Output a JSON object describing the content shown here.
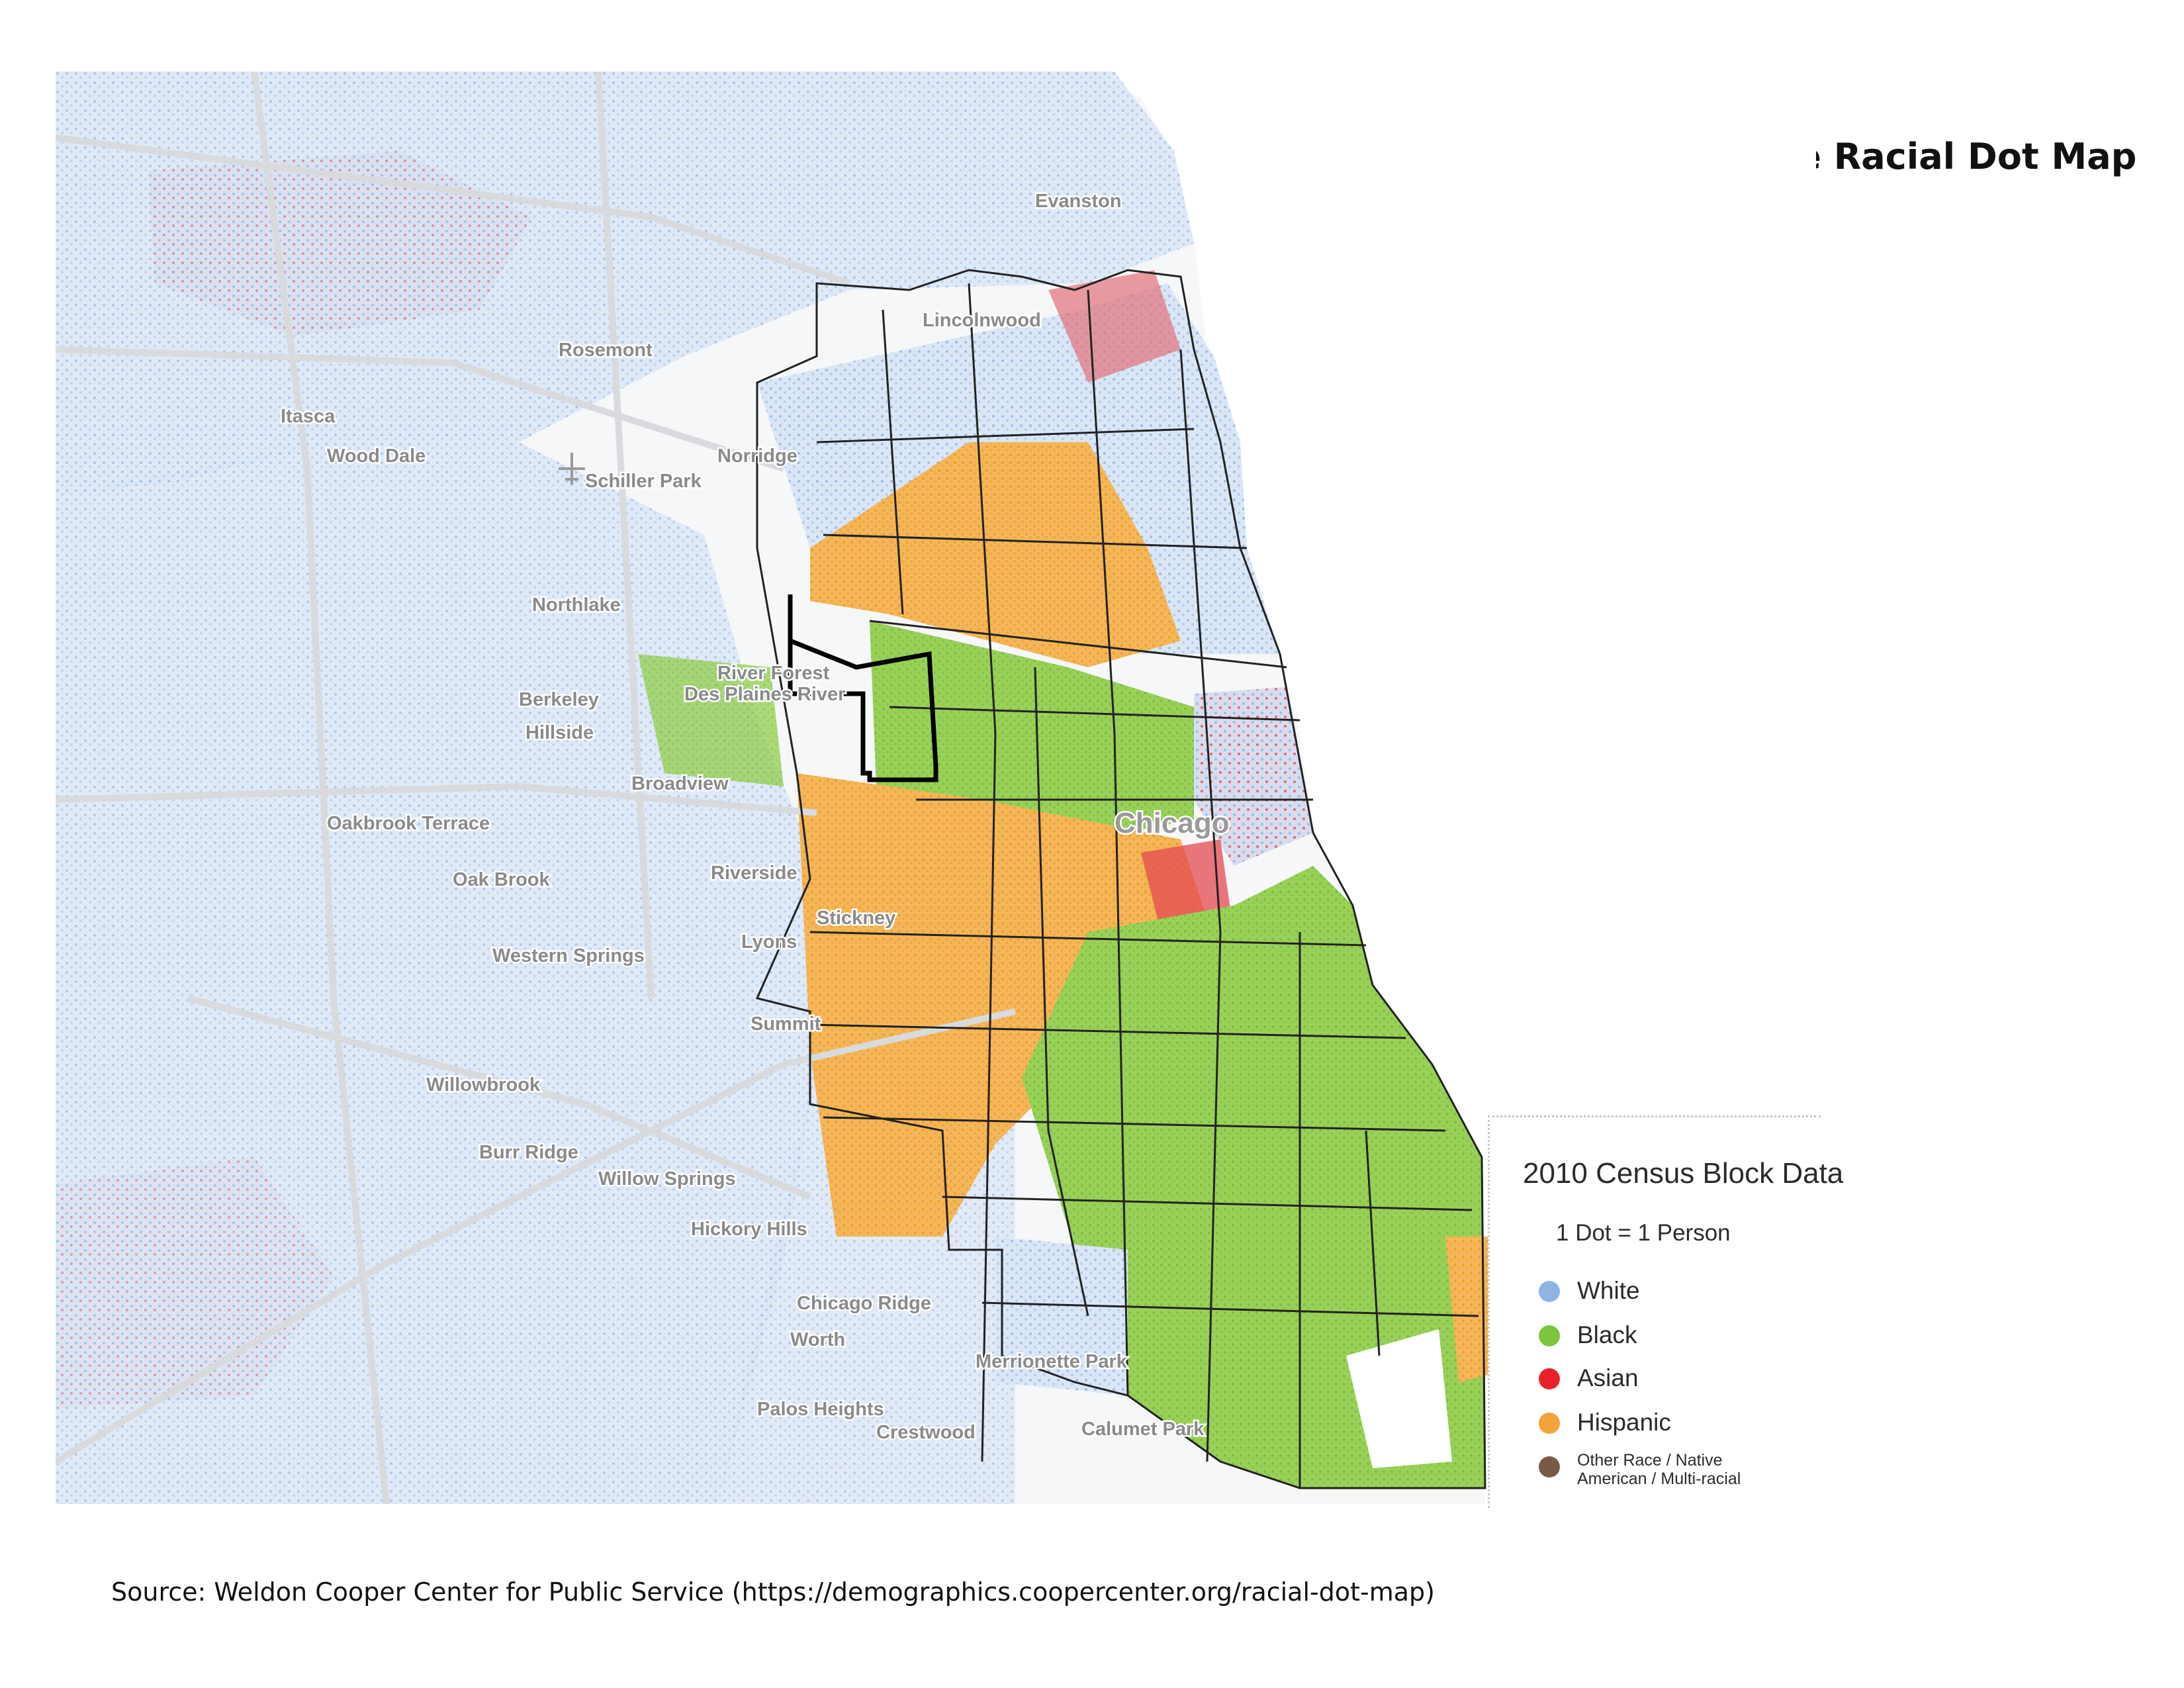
{
  "title": "The Racial Dot Map",
  "source": "Source: Weldon Cooper Center for Public Service (https://demographics.coopercenter.org/racial-dot-map)",
  "legend": {
    "title": "2010 Census Block Data",
    "scale": "1 Dot = 1 Person",
    "items": [
      {
        "label": "White",
        "color": "#8fb4e3"
      },
      {
        "label": "Black",
        "color": "#7dc53b"
      },
      {
        "label": "Asian",
        "color": "#e8202a"
      },
      {
        "label": "Hispanic",
        "color": "#f2a33a"
      },
      {
        "label": "Other Race / Native American / Multi-racial",
        "color": "#7a5a46"
      }
    ]
  },
  "map": {
    "places": [
      "Evanston",
      "Lincolnwood",
      "Rosemont",
      "Itasca",
      "Wood Dale",
      "Norridge",
      "Schiller Park",
      "Northlake",
      "River Forest",
      "Des Plaines River",
      "Berkeley",
      "Hillside",
      "Broadview",
      "Oakbrook Terrace",
      "Oak Brook",
      "Riverside",
      "Stickney",
      "Lyons",
      "Western Springs",
      "Summit",
      "Willowbrook",
      "Burr Ridge",
      "Willow Springs",
      "Hickory Hills",
      "Chicago Ridge",
      "Worth",
      "Merrionette Park",
      "Palos Heights",
      "Crestwood",
      "Calumet Park",
      "Chicago"
    ],
    "highlighted_area": "outlined community area (west side)",
    "icons": [
      "airport-icon"
    ]
  }
}
